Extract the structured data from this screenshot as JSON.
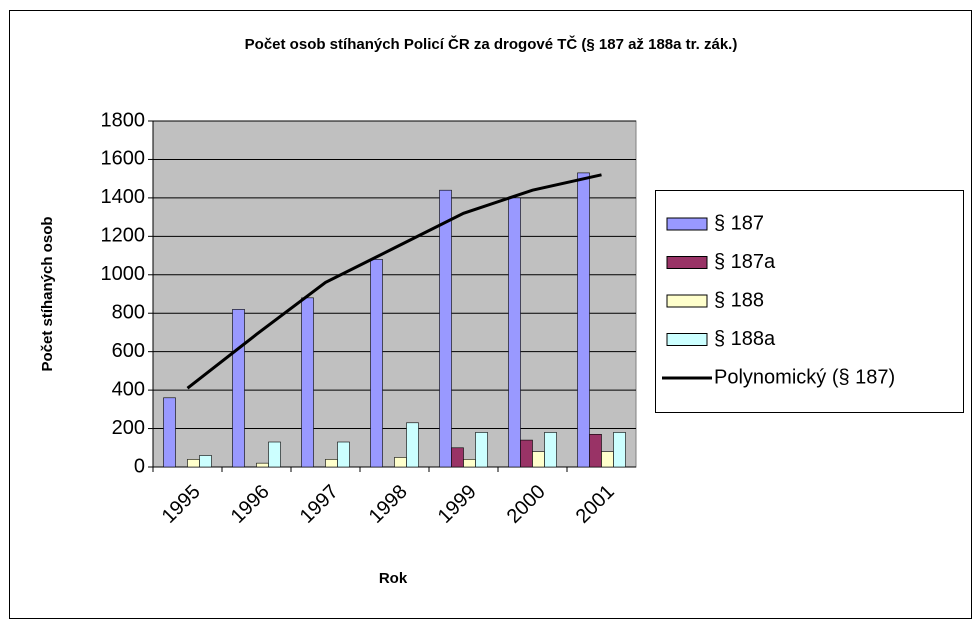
{
  "chart_data": {
    "type": "bar",
    "title": "Počet osob stíhaných Policí ČR za drogové TČ (§ 187 až 188a tr. zák.)",
    "x_label": "Rok",
    "y_label": "Počet stíhaných osob",
    "categories": [
      "1995",
      "1996",
      "1997",
      "1998",
      "1999",
      "2000",
      "2001"
    ],
    "series": [
      {
        "name": "§ 187",
        "color": "#9999ff",
        "values": [
          360,
          820,
          880,
          1080,
          1440,
          1400,
          1530
        ]
      },
      {
        "name": "§ 187a",
        "color": "#993366",
        "values": [
          0,
          0,
          0,
          0,
          100,
          140,
          170
        ]
      },
      {
        "name": "§ 188",
        "color": "#ffffcc",
        "values": [
          40,
          20,
          40,
          50,
          40,
          80,
          80
        ]
      },
      {
        "name": "§ 188a",
        "color": "#ccffff",
        "values": [
          60,
          130,
          130,
          230,
          180,
          180,
          180
        ]
      },
      {
        "name": "Polynomický (§ 187)",
        "type": "line",
        "color": "#000000",
        "values": [
          410,
          690,
          960,
          1140,
          1320,
          1440,
          1520
        ]
      }
    ],
    "ylim": [
      0,
      1800
    ],
    "yticks": [
      0,
      200,
      400,
      600,
      800,
      1000,
      1200,
      1400,
      1600,
      1800
    ],
    "grid": true,
    "legend": "right"
  }
}
